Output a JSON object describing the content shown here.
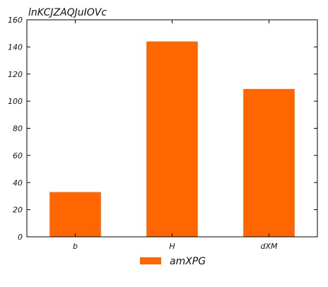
{
  "chart_data": {
    "type": "bar",
    "title": "lnKCJZAQJuIOVc",
    "categories": [
      "b",
      "H",
      "dXM"
    ],
    "series": [
      {
        "name": "amXPG",
        "values": [
          33,
          144,
          109
        ],
        "color": "#ff6600"
      }
    ],
    "ylim": [
      0,
      160
    ],
    "yticks": [
      0,
      20,
      40,
      60,
      80,
      100,
      120,
      140,
      160
    ],
    "grid": false,
    "legend_position": "bottom-center"
  }
}
